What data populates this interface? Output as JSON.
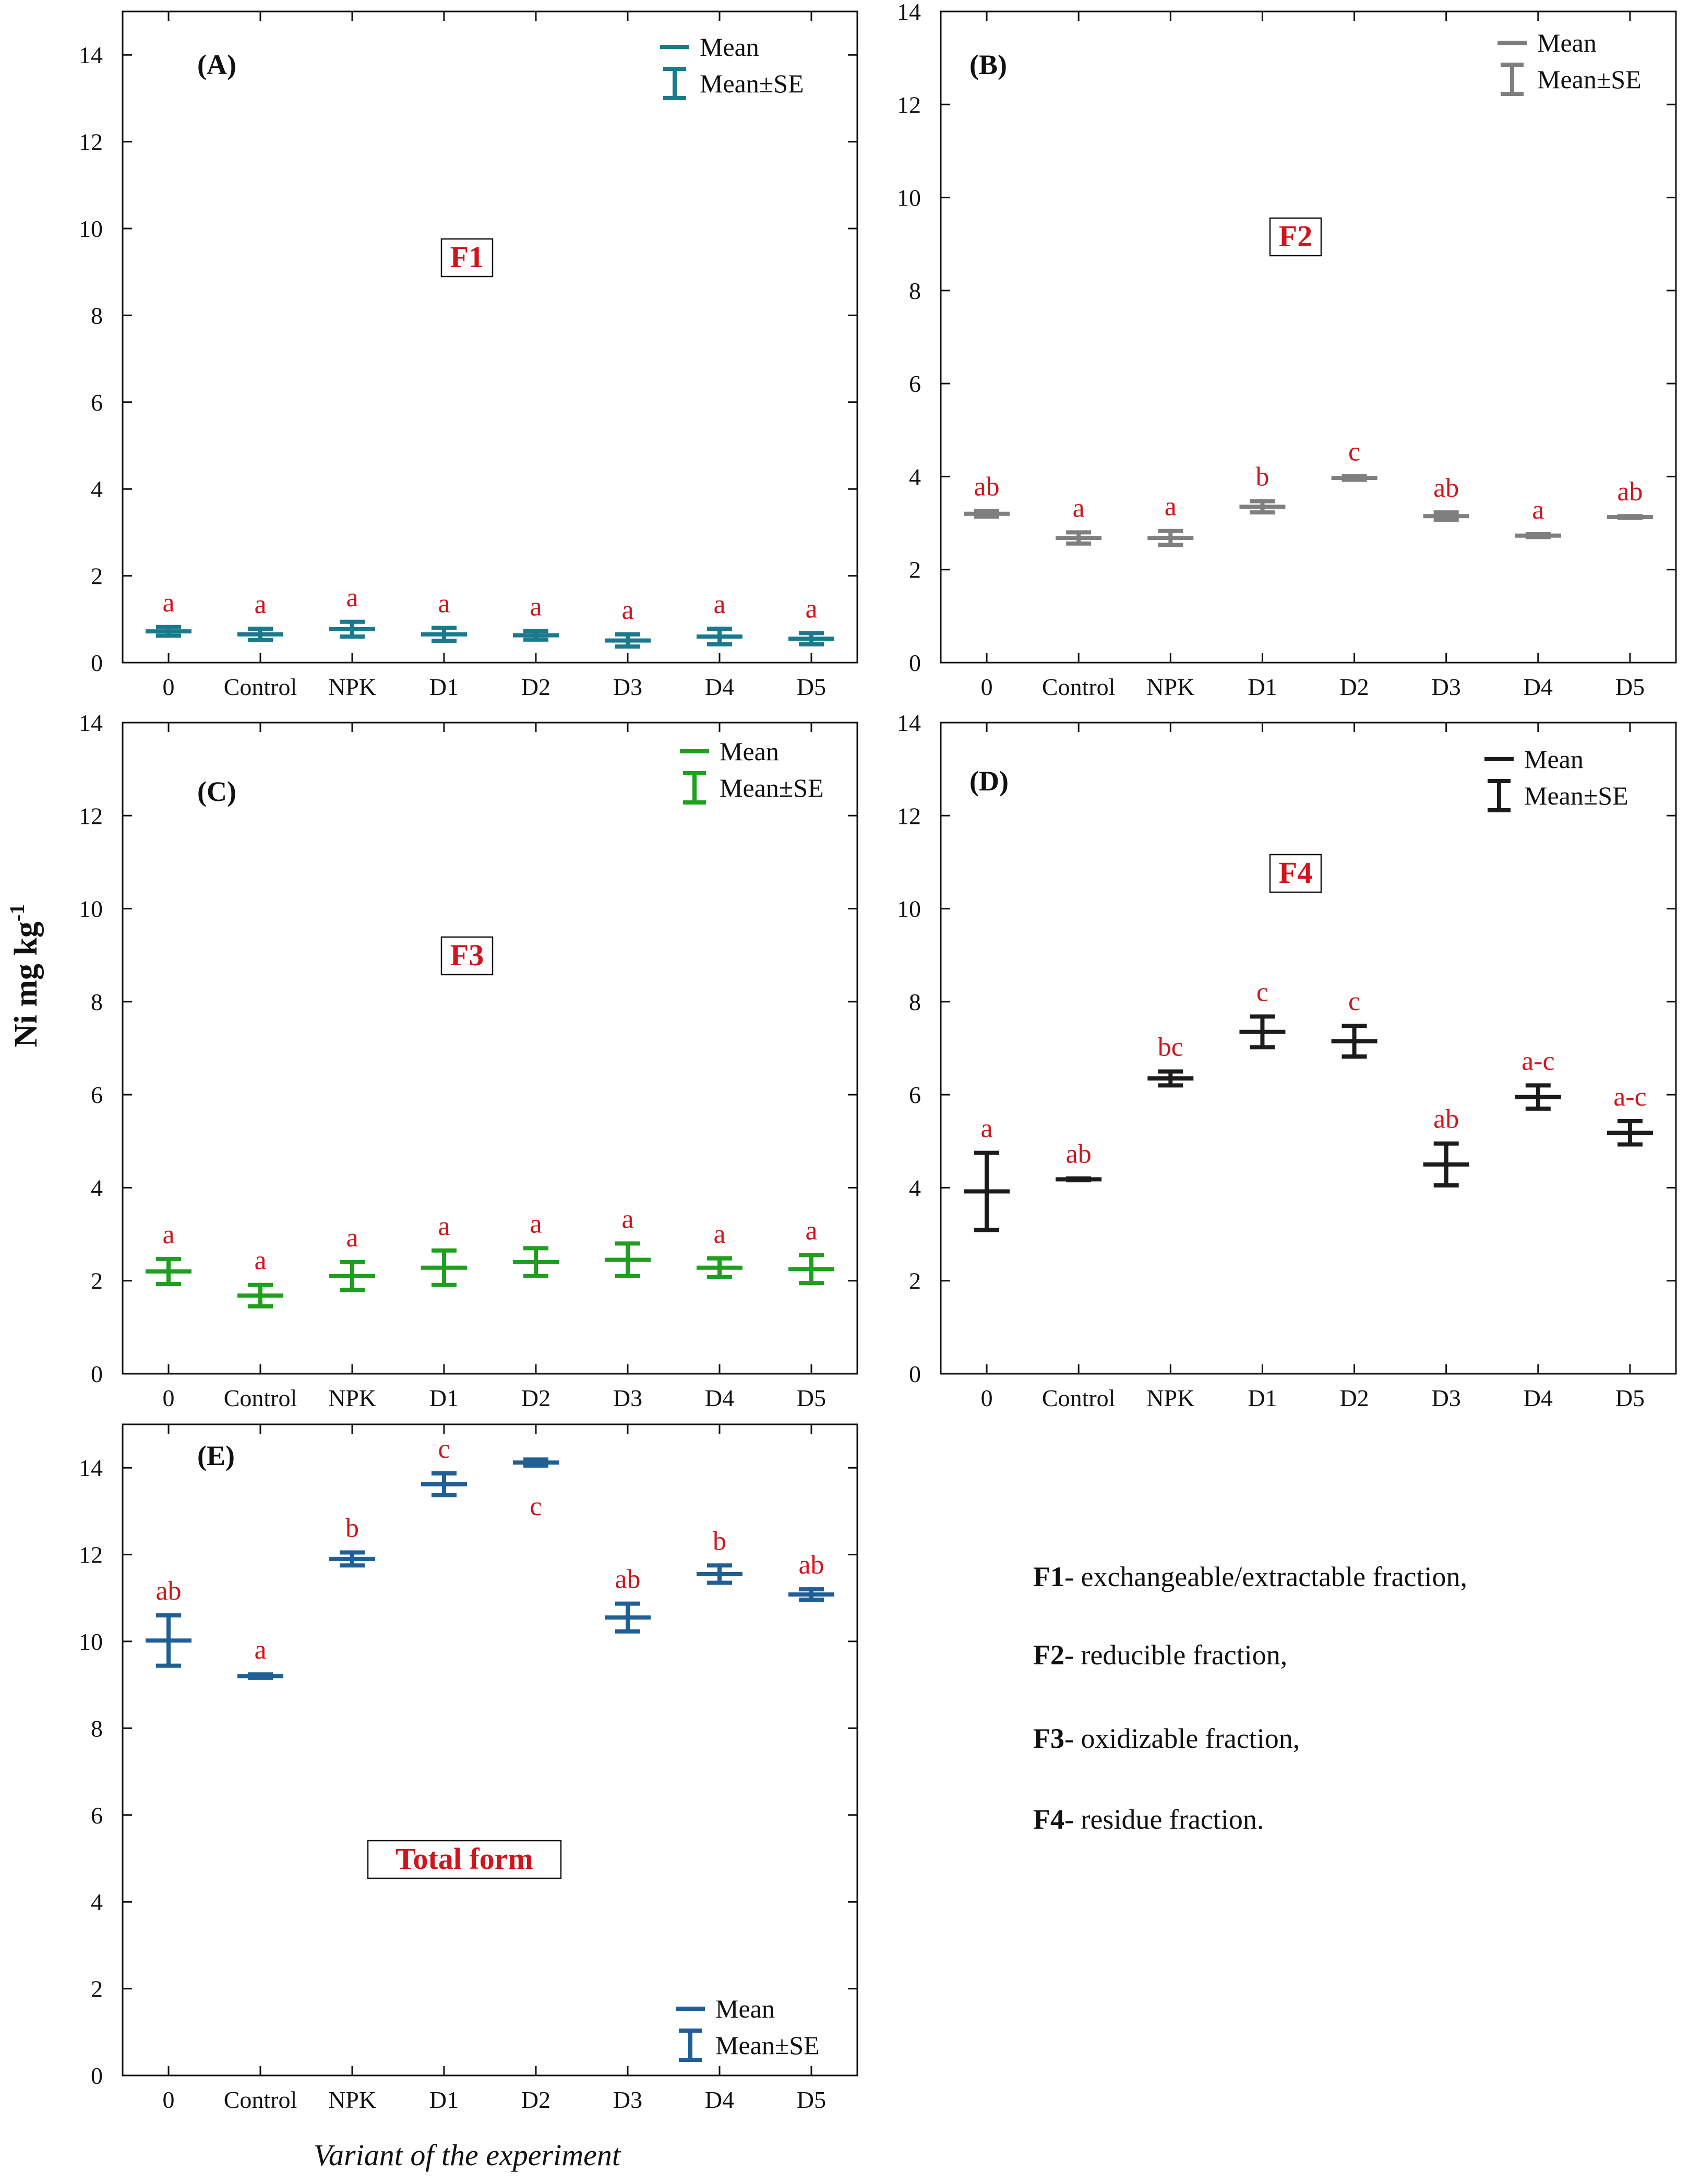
{
  "y_axis_label": "Ni mg kg",
  "y_axis_label_sup": "-1",
  "x_axis_label": "Variant of the experiment",
  "legend": {
    "mean": "Mean",
    "mean_se": "Mean±SE"
  },
  "notes": [
    {
      "key": "F1",
      "text": "- exchangeable/extractable fraction,"
    },
    {
      "key": "F2",
      "text": "- reducible fraction,"
    },
    {
      "key": "F3",
      "text": "- oxidizable fraction,"
    },
    {
      "key": "F4",
      "text": "- residue fraction."
    }
  ],
  "chart_data": [
    {
      "type": "errorbar",
      "panel": "(A)",
      "label": "F1",
      "color": "#1a7a8c",
      "categories": [
        "0",
        "Control",
        "NPK",
        "D1",
        "D2",
        "D3",
        "D4",
        "D5"
      ],
      "ylim": [
        0,
        15
      ],
      "yticks": [
        0,
        2,
        4,
        6,
        8,
        10,
        12,
        14
      ],
      "series": [
        {
          "name": "Mean",
          "mean": [
            0.72,
            0.65,
            0.77,
            0.65,
            0.63,
            0.51,
            0.6,
            0.55
          ],
          "se": [
            0.1,
            0.13,
            0.17,
            0.15,
            0.1,
            0.14,
            0.18,
            0.13
          ]
        }
      ],
      "letters": [
        "a",
        "a",
        "a",
        "a",
        "a",
        "a",
        "a",
        "a"
      ]
    },
    {
      "type": "errorbar",
      "panel": "(B)",
      "label": "F2",
      "color": "#7f7f7f",
      "categories": [
        "0",
        "Control",
        "NPK",
        "D1",
        "D2",
        "D3",
        "D4",
        "D5"
      ],
      "ylim": [
        0,
        14
      ],
      "yticks": [
        0,
        2,
        4,
        6,
        8,
        10,
        12,
        14
      ],
      "series": [
        {
          "name": "Mean",
          "mean": [
            3.2,
            2.68,
            2.68,
            3.35,
            3.97,
            3.15,
            2.73,
            3.13
          ],
          "se": [
            0.06,
            0.12,
            0.15,
            0.12,
            0.04,
            0.08,
            0.03,
            0.02
          ]
        }
      ],
      "letters": [
        "ab",
        "a",
        "a",
        "b",
        "c",
        "ab",
        "a",
        "ab"
      ]
    },
    {
      "type": "errorbar",
      "panel": "(C)",
      "label": "F3",
      "color": "#1f9e1f",
      "categories": [
        "0",
        "Control",
        "NPK",
        "D1",
        "D2",
        "D3",
        "D4",
        "D5"
      ],
      "ylim": [
        0,
        14
      ],
      "yticks": [
        0,
        2,
        4,
        6,
        8,
        10,
        12,
        14
      ],
      "series": [
        {
          "name": "Mean",
          "mean": [
            2.2,
            1.68,
            2.1,
            2.28,
            2.4,
            2.45,
            2.28,
            2.25
          ],
          "se": [
            0.27,
            0.23,
            0.3,
            0.37,
            0.3,
            0.35,
            0.2,
            0.3
          ]
        }
      ],
      "letters": [
        "a",
        "a",
        "a",
        "a",
        "a",
        "a",
        "a",
        "a"
      ]
    },
    {
      "type": "errorbar",
      "panel": "(D)",
      "label": "F4",
      "color": "#1c1c1c",
      "categories": [
        "0",
        "Control",
        "NPK",
        "D1",
        "D2",
        "D3",
        "D4",
        "D5"
      ],
      "ylim": [
        0,
        14
      ],
      "yticks": [
        0,
        2,
        4,
        6,
        8,
        10,
        12,
        14
      ],
      "series": [
        {
          "name": "Mean",
          "mean": [
            3.92,
            4.18,
            6.35,
            7.35,
            7.15,
            4.5,
            5.95,
            5.18
          ],
          "se": [
            0.83,
            0.02,
            0.15,
            0.33,
            0.33,
            0.45,
            0.25,
            0.25
          ]
        }
      ],
      "letters": [
        "a",
        "ab",
        "bc",
        "c",
        "c",
        "ab",
        "a-c",
        "a-c"
      ]
    },
    {
      "type": "errorbar",
      "panel": "(E)",
      "label": "Total form",
      "color": "#1f5f96",
      "categories": [
        "0",
        "Control",
        "NPK",
        "D1",
        "D2",
        "D3",
        "D4",
        "D5"
      ],
      "ylim": [
        0,
        15
      ],
      "yticks": [
        0,
        2,
        4,
        6,
        8,
        10,
        12,
        14
      ],
      "series": [
        {
          "name": "Mean",
          "mean": [
            10.02,
            9.2,
            11.9,
            13.62,
            14.12,
            10.55,
            11.55,
            11.08
          ],
          "se": [
            0.58,
            0.04,
            0.15,
            0.25,
            0.07,
            0.32,
            0.2,
            0.12
          ]
        }
      ],
      "letters": [
        "ab",
        "a",
        "b",
        "c",
        "c",
        "ab",
        "b",
        "ab"
      ]
    }
  ]
}
